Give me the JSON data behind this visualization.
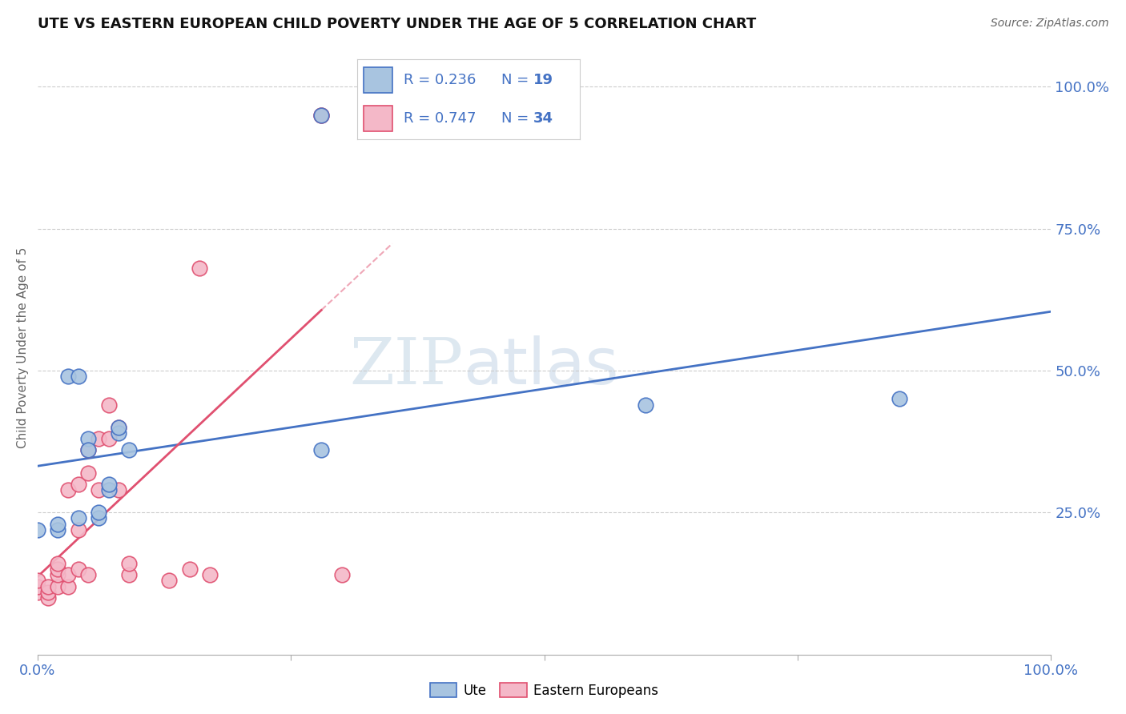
{
  "title": "UTE VS EASTERN EUROPEAN CHILD POVERTY UNDER THE AGE OF 5 CORRELATION CHART",
  "source": "Source: ZipAtlas.com",
  "ylabel": "Child Poverty Under the Age of 5",
  "legend_r1": "R = 0.236",
  "legend_n1": "N = 19",
  "legend_r2": "R = 0.747",
  "legend_n2": "N = 34",
  "ute_color": "#a8c4e0",
  "eastern_color": "#f4b8c8",
  "ute_line_color": "#4472c4",
  "eastern_line_color": "#e05070",
  "watermark_zip": "ZIP",
  "watermark_atlas": "atlas",
  "ute_x": [
    0.0,
    2.0,
    2.0,
    3.0,
    4.0,
    4.0,
    5.0,
    5.0,
    6.0,
    6.0,
    7.0,
    7.0,
    8.0,
    8.0,
    9.0,
    28.0,
    28.0,
    60.0,
    85.0
  ],
  "ute_y": [
    22.0,
    22.0,
    23.0,
    49.0,
    49.0,
    24.0,
    38.0,
    36.0,
    24.0,
    25.0,
    29.0,
    30.0,
    39.0,
    40.0,
    36.0,
    36.0,
    95.0,
    44.0,
    45.0
  ],
  "eastern_x": [
    0.0,
    0.0,
    0.0,
    1.0,
    1.0,
    1.0,
    2.0,
    2.0,
    2.0,
    2.0,
    3.0,
    3.0,
    3.0,
    4.0,
    4.0,
    4.0,
    5.0,
    5.0,
    5.0,
    6.0,
    6.0,
    7.0,
    7.0,
    8.0,
    8.0,
    9.0,
    9.0,
    13.0,
    15.0,
    16.0,
    17.0,
    28.0,
    28.0,
    30.0
  ],
  "eastern_y": [
    11.0,
    12.0,
    13.0,
    10.0,
    11.0,
    12.0,
    12.0,
    14.0,
    15.0,
    16.0,
    12.0,
    14.0,
    29.0,
    30.0,
    15.0,
    22.0,
    14.0,
    32.0,
    36.0,
    29.0,
    38.0,
    38.0,
    44.0,
    40.0,
    29.0,
    14.0,
    16.0,
    13.0,
    15.0,
    68.0,
    14.0,
    95.0,
    95.0,
    14.0
  ],
  "xlim": [
    0,
    100
  ],
  "ylim": [
    0,
    108
  ],
  "ytick_values": [
    25,
    50,
    75,
    100
  ],
  "ytick_labels": [
    "25.0%",
    "50.0%",
    "75.0%",
    "100.0%"
  ],
  "xtick_values": [
    0,
    25,
    50,
    75,
    100
  ],
  "xtick_labels": [
    "0.0%",
    "",
    "",
    "",
    "100.0%"
  ]
}
